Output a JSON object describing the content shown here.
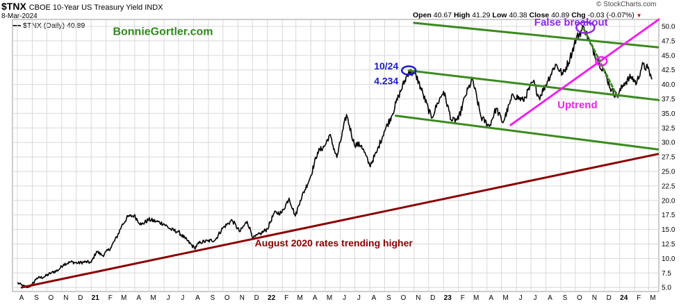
{
  "header": {
    "symbol": "$TNX",
    "description": "CBOE 10-Year US Treasury Yield INDX",
    "date": "8-Mar-2024",
    "watermark": "© StockCharts.com",
    "legend": "$TNX (Daily) 40.89",
    "ohlc": {
      "open_label": "Open",
      "open": "40.67",
      "high_label": "High",
      "high": "41.29",
      "low_label": "Low",
      "low": "40.38",
      "close_label": "Close",
      "close": "40.89",
      "chg_label": "Chg",
      "chg": "-0.03 (-0.07%)"
    }
  },
  "colors": {
    "price": "#000000",
    "channel": "#3a8a1e",
    "uptrend": "#ee22ee",
    "longtrend": "#8b0000",
    "circle_blue": "#1a1acc",
    "circle_purple": "#8a2be2",
    "circle_pink": "#ee22ee",
    "brand": "#2f8a1a",
    "grid": "#d8d8d8"
  },
  "chart_data": {
    "type": "line",
    "series": [
      {
        "name": "$TNX (Daily)",
        "points": [
          [
            "2020-08-01",
            5.8
          ],
          [
            "2020-08-10",
            5.4
          ],
          [
            "2020-08-20",
            5.0
          ],
          [
            "2020-08-31",
            5.4
          ],
          [
            "2020-09-10",
            6.6
          ],
          [
            "2020-09-25",
            6.8
          ],
          [
            "2020-10-10",
            7.5
          ],
          [
            "2020-10-25",
            8.0
          ],
          [
            "2020-11-05",
            9.0
          ],
          [
            "2020-11-20",
            9.4
          ],
          [
            "2020-12-05",
            9.2
          ],
          [
            "2020-12-20",
            9.4
          ],
          [
            "2021-01-01",
            9.3
          ],
          [
            "2021-01-12",
            11.2
          ],
          [
            "2021-01-25",
            10.5
          ],
          [
            "2021-02-10",
            11.8
          ],
          [
            "2021-02-25",
            14.0
          ],
          [
            "2021-03-05",
            15.6
          ],
          [
            "2021-03-18",
            17.2
          ],
          [
            "2021-03-31",
            17.4
          ],
          [
            "2021-04-15",
            15.8
          ],
          [
            "2021-04-30",
            16.7
          ],
          [
            "2021-05-15",
            16.4
          ],
          [
            "2021-05-31",
            16.0
          ],
          [
            "2021-06-15",
            15.0
          ],
          [
            "2021-06-30",
            14.6
          ],
          [
            "2021-07-15",
            13.4
          ],
          [
            "2021-08-03",
            11.8
          ],
          [
            "2021-08-15",
            12.8
          ],
          [
            "2021-08-31",
            13.0
          ],
          [
            "2021-09-15",
            13.2
          ],
          [
            "2021-09-30",
            15.2
          ],
          [
            "2021-10-20",
            16.6
          ],
          [
            "2021-11-05",
            14.6
          ],
          [
            "2021-11-20",
            16.4
          ],
          [
            "2021-12-03",
            13.5
          ],
          [
            "2021-12-20",
            14.4
          ],
          [
            "2022-01-01",
            15.1
          ],
          [
            "2022-01-15",
            17.8
          ],
          [
            "2022-01-31",
            17.9
          ],
          [
            "2022-02-15",
            20.4
          ],
          [
            "2022-02-28",
            17.3
          ],
          [
            "2022-03-10",
            20.0
          ],
          [
            "2022-03-31",
            24.0
          ],
          [
            "2022-04-15",
            28.3
          ],
          [
            "2022-04-30",
            29.4
          ],
          [
            "2022-05-10",
            31.3
          ],
          [
            "2022-05-25",
            27.4
          ],
          [
            "2022-06-14",
            34.8
          ],
          [
            "2022-06-30",
            29.7
          ],
          [
            "2022-07-15",
            29.5
          ],
          [
            "2022-08-01",
            26.0
          ],
          [
            "2022-08-15",
            28.2
          ],
          [
            "2022-08-31",
            31.9
          ],
          [
            "2022-09-15",
            34.5
          ],
          [
            "2022-09-30",
            38.0
          ],
          [
            "2022-10-21",
            42.3
          ],
          [
            "2022-11-05",
            41.6
          ],
          [
            "2022-11-20",
            38.2
          ],
          [
            "2022-12-07",
            34.2
          ],
          [
            "2022-12-20",
            36.8
          ],
          [
            "2023-01-01",
            38.8
          ],
          [
            "2023-01-18",
            33.7
          ],
          [
            "2023-02-01",
            34.0
          ],
          [
            "2023-02-15",
            38.0
          ],
          [
            "2023-03-02",
            40.9
          ],
          [
            "2023-03-20",
            34.3
          ],
          [
            "2023-04-06",
            32.8
          ],
          [
            "2023-04-20",
            35.9
          ],
          [
            "2023-05-04",
            33.4
          ],
          [
            "2023-05-25",
            38.2
          ],
          [
            "2023-06-15",
            37.2
          ],
          [
            "2023-07-06",
            40.5
          ],
          [
            "2023-07-18",
            37.7
          ],
          [
            "2023-08-04",
            40.5
          ],
          [
            "2023-08-21",
            43.5
          ],
          [
            "2023-09-05",
            41.7
          ],
          [
            "2023-09-20",
            44.5
          ],
          [
            "2023-10-03",
            47.9
          ],
          [
            "2023-10-19",
            49.9
          ],
          [
            "2023-11-01",
            47.0
          ],
          [
            "2023-11-15",
            44.5
          ],
          [
            "2023-12-01",
            42.0
          ],
          [
            "2023-12-15",
            39.0
          ],
          [
            "2023-12-27",
            37.9
          ],
          [
            "2024-01-10",
            40.2
          ],
          [
            "2024-01-25",
            41.3
          ],
          [
            "2024-02-05",
            40.2
          ],
          [
            "2024-02-16",
            43.2
          ],
          [
            "2024-02-28",
            42.8
          ],
          [
            "2024-03-08",
            40.89
          ]
        ]
      }
    ],
    "x_tick_labels": [
      "A",
      "S",
      "O",
      "N",
      "D",
      "21",
      "F",
      "M",
      "A",
      "M",
      "J",
      "J",
      "A",
      "S",
      "O",
      "N",
      "D",
      "22",
      "F",
      "M",
      "A",
      "M",
      "J",
      "J",
      "A",
      "S",
      "O",
      "N",
      "D",
      "23",
      "F",
      "M",
      "A",
      "M",
      "J",
      "J",
      "A",
      "S",
      "O",
      "N",
      "D",
      "24",
      "F",
      "M"
    ],
    "y_ticks": [
      5.0,
      7.5,
      10.0,
      12.5,
      15.0,
      17.5,
      20.0,
      22.5,
      25.0,
      27.5,
      30.0,
      32.5,
      35.0,
      37.5,
      40.0,
      42.5,
      45.0,
      47.5,
      50.0
    ],
    "ylim": [
      4.3,
      51.2
    ],
    "xlim": [
      "2020-07-22",
      "2024-03-22"
    ],
    "y_axis_side": "right",
    "grid": true,
    "trend_lines": [
      {
        "color_key": "longtrend",
        "from": [
          "2020-08-10",
          5.0
        ],
        "to": [
          "2024-03-20",
          28.0
        ]
      },
      {
        "color_key": "channel",
        "from": [
          "2022-11-01",
          50.6
        ],
        "to": [
          "2024-03-20",
          46.4
        ]
      },
      {
        "color_key": "channel",
        "from": [
          "2022-10-21",
          42.4
        ],
        "to": [
          "2024-03-22",
          37.3
        ]
      },
      {
        "color_key": "channel",
        "from": [
          "2022-09-24",
          34.6
        ],
        "to": [
          "2024-03-20",
          28.8
        ]
      },
      {
        "color_key": "uptrend",
        "from": [
          "2023-05-20",
          33.0
        ],
        "to": [
          "2024-03-22",
          51.2
        ]
      },
      {
        "color_key": "channel",
        "dashed": true,
        "from": [
          "2023-10-19",
          49.5
        ],
        "to": [
          "2023-12-27",
          37.9
        ]
      }
    ],
    "circles": [
      {
        "color_key": "circle_blue",
        "at": [
          "2022-10-21",
          42.4
        ],
        "rx": 10,
        "ry": 6
      },
      {
        "color_key": "circle_purple",
        "at": [
          "2023-10-22",
          49.8
        ],
        "rx": 13,
        "ry": 8
      },
      {
        "color_key": "circle_pink",
        "at": [
          "2023-11-24",
          44.0
        ],
        "rx": 8,
        "ry": 6
      }
    ],
    "annotations": [
      {
        "text": "BonnieGortler.com",
        "color_key": "brand",
        "at": [
          "2021-02-15",
          48.5
        ],
        "size": 16
      },
      {
        "text": "10/24",
        "color_key": "circle_blue",
        "at": [
          "2022-08-10",
          42.6
        ],
        "size": 14
      },
      {
        "text": "4.234",
        "color_key": "circle_blue",
        "at": [
          "2022-08-10",
          40.0
        ],
        "size": 14
      },
      {
        "text": "False breakout",
        "color_key": "circle_purple",
        "at": [
          "2023-07-08",
          50.1
        ],
        "size": 15
      },
      {
        "text": "Uptrend",
        "color_key": "uptrend",
        "at": [
          "2023-08-25",
          35.9
        ],
        "size": 15
      },
      {
        "text": "August 2020 rates trending higher",
        "color_key": "longtrend",
        "at": [
          "2021-12-06",
          12.1
        ],
        "size": 14
      }
    ]
  }
}
